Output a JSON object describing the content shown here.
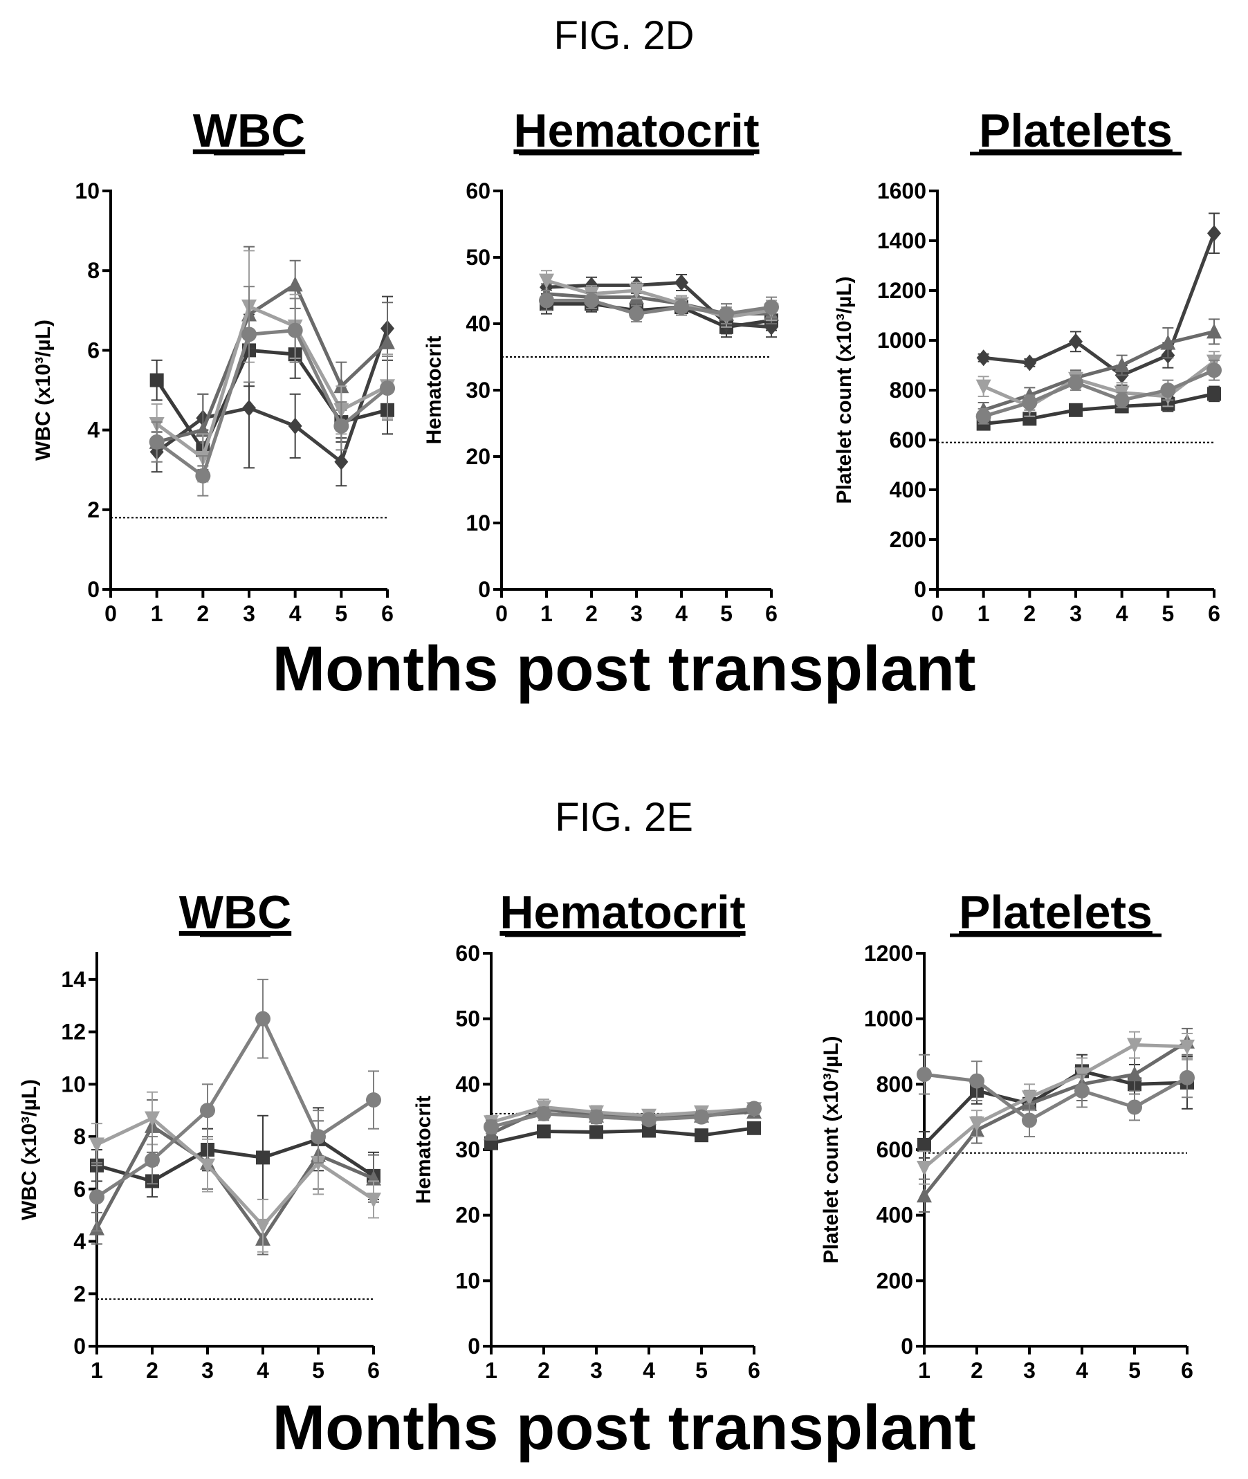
{
  "figures": [
    {
      "label": "FIG. 2D",
      "xlabel": "Months post transplant"
    },
    {
      "label": "FIG. 2E",
      "xlabel": "Months post transplant"
    }
  ],
  "chart_data": [
    {
      "type": "line",
      "figure": "FIG. 2D",
      "title": "WBC",
      "ylabel": "WBC (x10³/µL)",
      "xlabel": "",
      "xlim": [
        0,
        6
      ],
      "ylim": [
        0,
        10
      ],
      "xticks": [
        0,
        1,
        2,
        3,
        4,
        5,
        6
      ],
      "yticks": [
        0,
        2,
        4,
        6,
        8,
        10
      ],
      "reference_line": 1.8,
      "x": [
        1,
        2,
        3,
        4,
        5,
        6
      ],
      "series": [
        {
          "marker": "square",
          "color": "#3a3a3a",
          "values": [
            5.25,
            3.5,
            6.0,
            5.9,
            4.2,
            4.5
          ],
          "error": [
            0.5,
            0.5,
            0.9,
            0.6,
            0.5,
            0.6
          ]
        },
        {
          "marker": "diamond",
          "color": "#404040",
          "values": [
            3.45,
            4.3,
            4.55,
            4.1,
            3.2,
            6.55
          ],
          "error": [
            0.5,
            0.6,
            1.5,
            0.8,
            0.6,
            0.8
          ]
        },
        {
          "marker": "triangle",
          "color": "#6a6a6a",
          "values": [
            3.7,
            4.0,
            6.9,
            7.65,
            5.1,
            6.2
          ],
          "error": [
            0.5,
            0.9,
            1.7,
            0.6,
            0.6,
            1.0
          ]
        },
        {
          "marker": "triangle-down",
          "color": "#a0a0a0",
          "values": [
            4.15,
            3.3,
            7.1,
            6.6,
            4.5,
            5.1
          ],
          "error": [
            0.5,
            0.6,
            1.4,
            0.8,
            0.6,
            0.8
          ]
        },
        {
          "marker": "circle",
          "color": "#808080",
          "values": [
            3.7,
            2.85,
            6.4,
            6.5,
            4.1,
            5.05
          ],
          "error": [
            0.5,
            0.5,
            1.2,
            0.8,
            0.6,
            0.8
          ]
        }
      ]
    },
    {
      "type": "line",
      "figure": "FIG. 2D",
      "title": "Hematocrit",
      "ylabel": "Hematocrit",
      "xlabel": "",
      "xlim": [
        0,
        6
      ],
      "ylim": [
        0,
        60
      ],
      "xticks": [
        0,
        1,
        2,
        3,
        4,
        5,
        6
      ],
      "yticks": [
        0,
        10,
        20,
        30,
        40,
        50,
        60
      ],
      "reference_line": 35,
      "x": [
        1,
        2,
        3,
        4,
        5,
        6
      ],
      "series": [
        {
          "marker": "square",
          "color": "#3a3a3a",
          "values": [
            43,
            43,
            42,
            42.5,
            39.5,
            40.5
          ],
          "error": [
            1.5,
            1.2,
            1.2,
            1.2,
            1.5,
            1.5
          ]
        },
        {
          "marker": "diamond",
          "color": "#404040",
          "values": [
            45.5,
            45.8,
            45.8,
            46.2,
            40,
            39.5
          ],
          "error": [
            1.5,
            1.2,
            1.2,
            1.2,
            1.5,
            1.5
          ]
        },
        {
          "marker": "triangle",
          "color": "#6a6a6a",
          "values": [
            44.5,
            44,
            44,
            43,
            41.5,
            41.5
          ],
          "error": [
            1.5,
            1.2,
            1.2,
            1.2,
            1.5,
            1.5
          ]
        },
        {
          "marker": "triangle-down",
          "color": "#a0a0a0",
          "values": [
            46.5,
            44.5,
            45,
            43,
            41,
            42
          ],
          "error": [
            1.5,
            1.2,
            1.2,
            1.2,
            1.5,
            1.5
          ]
        },
        {
          "marker": "circle",
          "color": "#808080",
          "values": [
            43.5,
            43.5,
            41.5,
            42.5,
            41.5,
            42.5
          ],
          "error": [
            1.5,
            1.2,
            1.2,
            1.2,
            1.5,
            1.5
          ]
        }
      ]
    },
    {
      "type": "line",
      "figure": "FIG. 2D",
      "title": "Platelets",
      "ylabel": "Platelet count (x10³/µL)",
      "xlabel": "",
      "xlim": [
        0,
        6
      ],
      "ylim": [
        0,
        1600
      ],
      "xticks": [
        0,
        1,
        2,
        3,
        4,
        5,
        6
      ],
      "yticks": [
        0,
        200,
        400,
        600,
        800,
        1000,
        1200,
        1400,
        1600
      ],
      "reference_line": 590,
      "x": [
        1,
        2,
        3,
        4,
        5,
        6
      ],
      "series": [
        {
          "marker": "square",
          "color": "#3a3a3a",
          "values": [
            665,
            685,
            720,
            735,
            745,
            785
          ],
          "error": [
            20,
            20,
            20,
            25,
            30,
            30
          ]
        },
        {
          "marker": "diamond",
          "color": "#404040",
          "values": [
            930,
            910,
            995,
            860,
            940,
            1430
          ],
          "error": [
            15,
            15,
            40,
            40,
            50,
            80
          ]
        },
        {
          "marker": "triangle",
          "color": "#6a6a6a",
          "values": [
            720,
            780,
            850,
            900,
            990,
            1035
          ],
          "error": [
            30,
            30,
            30,
            40,
            60,
            50
          ]
        },
        {
          "marker": "triangle-down",
          "color": "#a0a0a0",
          "values": [
            815,
            735,
            845,
            790,
            775,
            915
          ],
          "error": [
            40,
            40,
            30,
            40,
            40,
            40
          ]
        },
        {
          "marker": "circle",
          "color": "#808080",
          "values": [
            695,
            750,
            830,
            760,
            800,
            880
          ],
          "error": [
            30,
            30,
            30,
            30,
            40,
            40
          ]
        }
      ]
    },
    {
      "type": "line",
      "figure": "FIG. 2E",
      "title": "WBC",
      "ylabel": "WBC (x10³/µL)",
      "xlabel": "",
      "xlim": [
        1,
        6
      ],
      "ylim": [
        0,
        15
      ],
      "xticks": [
        1,
        2,
        3,
        4,
        5,
        6
      ],
      "yticks": [
        0,
        2,
        4,
        6,
        8,
        10,
        12,
        14
      ],
      "reference_line": 1.8,
      "x": [
        1,
        2,
        3,
        4,
        5,
        6
      ],
      "series": [
        {
          "marker": "square",
          "color": "#3a3a3a",
          "values": [
            6.9,
            6.3,
            7.5,
            7.2,
            7.9,
            6.5
          ],
          "error": [
            0.6,
            0.6,
            0.8,
            1.6,
            1.2,
            0.9
          ]
        },
        {
          "marker": "triangle",
          "color": "#6a6a6a",
          "values": [
            4.5,
            8.4,
            7.0,
            4.1,
            7.3,
            6.4
          ],
          "error": [
            0.6,
            1.0,
            1.0,
            0.6,
            1.3,
            0.9
          ]
        },
        {
          "marker": "triangle-down",
          "color": "#a0a0a0",
          "values": [
            7.7,
            8.7,
            6.9,
            4.6,
            7.0,
            5.6
          ],
          "error": [
            0.8,
            1.0,
            1.0,
            1.0,
            1.2,
            0.7
          ]
        },
        {
          "marker": "circle",
          "color": "#808080",
          "values": [
            5.7,
            7.1,
            9.0,
            12.5,
            8.0,
            9.4
          ],
          "error": [
            1.3,
            0.9,
            1.0,
            1.5,
            1.0,
            1.1
          ]
        }
      ]
    },
    {
      "type": "line",
      "figure": "FIG. 2E",
      "title": "Hematocrit",
      "ylabel": "Hematocrit",
      "xlabel": "",
      "xlim": [
        1,
        6
      ],
      "ylim": [
        0,
        60
      ],
      "xticks": [
        1,
        2,
        3,
        4,
        5,
        6
      ],
      "yticks": [
        0,
        10,
        20,
        30,
        40,
        50,
        60
      ],
      "reference_line": 35.5,
      "x": [
        1,
        2,
        3,
        4,
        5,
        6
      ],
      "series": [
        {
          "marker": "square",
          "color": "#3a3a3a",
          "values": [
            31,
            32.8,
            32.7,
            32.9,
            32.2,
            33.3
          ],
          "error": [
            0.8,
            0.8,
            0.8,
            0.8,
            0.8,
            0.8
          ]
        },
        {
          "marker": "triangle",
          "color": "#6a6a6a",
          "values": [
            32.5,
            36.2,
            35.2,
            34.8,
            35.2,
            35.8
          ],
          "error": [
            1.0,
            1.2,
            1.0,
            0.8,
            0.8,
            0.8
          ]
        },
        {
          "marker": "triangle-down",
          "color": "#a0a0a0",
          "values": [
            34.2,
            36.5,
            35.7,
            35.2,
            35.7,
            36.2
          ],
          "error": [
            1.0,
            1.2,
            1.0,
            0.8,
            0.8,
            0.8
          ]
        },
        {
          "marker": "circle",
          "color": "#808080",
          "values": [
            33.5,
            35.5,
            35,
            34.6,
            35,
            36.3
          ],
          "error": [
            1.0,
            1.0,
            1.0,
            0.8,
            0.8,
            0.8
          ]
        }
      ]
    },
    {
      "type": "line",
      "figure": "FIG. 2E",
      "title": "Platelets",
      "ylabel": "Platelet count (x10³/µL)",
      "xlabel": "",
      "xlim": [
        1,
        6
      ],
      "ylim": [
        0,
        1200
      ],
      "xticks": [
        1,
        2,
        3,
        4,
        5,
        6
      ],
      "yticks": [
        0,
        200,
        400,
        600,
        800,
        1000,
        1200
      ],
      "reference_line": 590,
      "x": [
        1,
        2,
        3,
        4,
        5,
        6
      ],
      "series": [
        {
          "marker": "square",
          "color": "#3a3a3a",
          "values": [
            615,
            780,
            740,
            840,
            800,
            805
          ],
          "error": [
            40,
            40,
            40,
            50,
            60,
            80
          ]
        },
        {
          "marker": "triangle",
          "color": "#6a6a6a",
          "values": [
            460,
            660,
            740,
            800,
            830,
            930
          ],
          "error": [
            50,
            40,
            40,
            50,
            50,
            40
          ]
        },
        {
          "marker": "triangle-down",
          "color": "#a0a0a0",
          "values": [
            545,
            680,
            760,
            830,
            920,
            915
          ],
          "error": [
            50,
            40,
            40,
            50,
            40,
            40
          ]
        },
        {
          "marker": "circle",
          "color": "#808080",
          "values": [
            830,
            810,
            690,
            780,
            730,
            820
          ],
          "error": [
            60,
            60,
            50,
            50,
            40,
            60
          ]
        }
      ]
    }
  ]
}
